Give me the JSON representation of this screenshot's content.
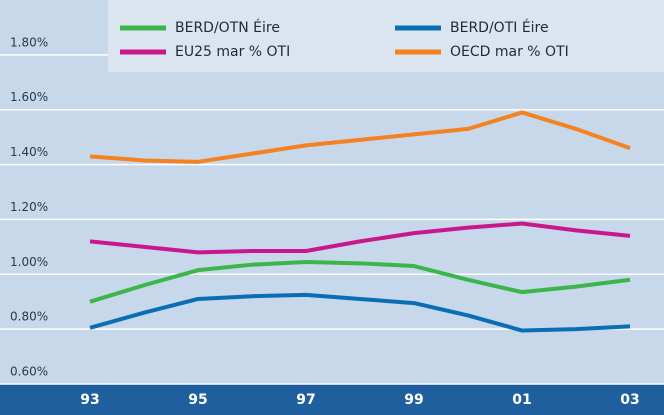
{
  "chart_data": {
    "type": "line",
    "categories": [
      "93",
      null,
      "95",
      null,
      "97",
      null,
      "99",
      null,
      "01",
      null,
      "03"
    ],
    "series": [
      {
        "name": "BERD/OTN Éire",
        "color": "#3cb54a",
        "values": [
          0.9,
          0.96,
          1.015,
          1.035,
          1.045,
          1.04,
          1.03,
          0.98,
          0.935,
          0.955,
          0.98
        ]
      },
      {
        "name": "BERD/OTI Éire",
        "color": "#0a6eb4",
        "values": [
          0.805,
          0.86,
          0.91,
          0.92,
          0.925,
          0.91,
          0.895,
          0.85,
          0.795,
          0.8,
          0.81
        ]
      },
      {
        "name": "EU25 mar % OTI",
        "color": "#c8188c",
        "values": [
          1.12,
          1.1,
          1.08,
          1.085,
          1.085,
          1.12,
          1.15,
          1.17,
          1.185,
          1.16,
          1.14
        ]
      },
      {
        "name": "OECD mar % OTI",
        "color": "#f58220",
        "values": [
          1.43,
          1.415,
          1.41,
          1.44,
          1.47,
          1.49,
          1.51,
          1.53,
          1.59,
          1.53,
          1.46
        ]
      }
    ],
    "ylim": [
      0.6,
      2.0
    ],
    "yticks": [
      {
        "value": 0.6,
        "label": "0.60%"
      },
      {
        "value": 0.8,
        "label": "0.80%"
      },
      {
        "value": 1.0,
        "label": "1.00%"
      },
      {
        "value": 1.2,
        "label": "1.20%"
      },
      {
        "value": 1.4,
        "label": "1.40%"
      },
      {
        "value": 1.6,
        "label": "1.60%"
      },
      {
        "value": 1.8,
        "label": "1.80%"
      }
    ],
    "grid": true
  }
}
